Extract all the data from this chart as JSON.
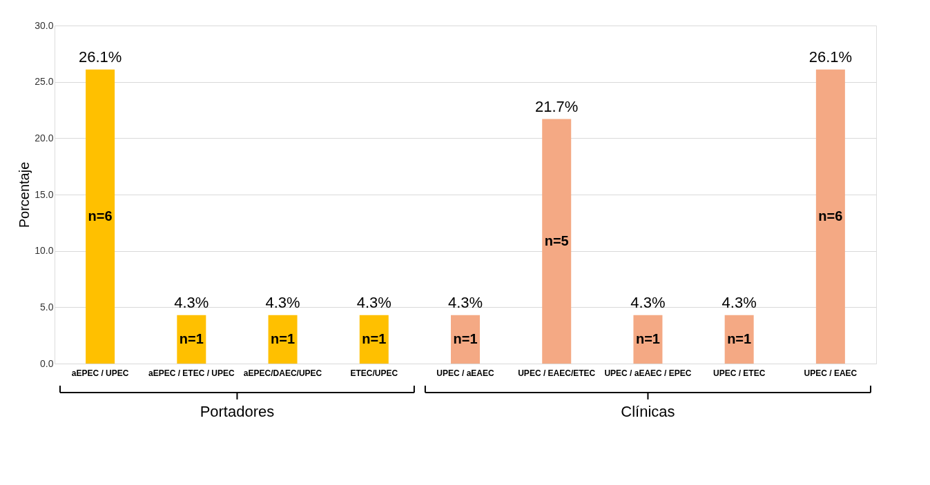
{
  "chart_data": {
    "type": "bar",
    "ylabel": "Porcentaje",
    "categories": [
      "aEPEC / UPEC",
      "aEPEC / ETEC / UPEC",
      "aEPEC/DAEC/UPEC",
      "ETEC/UPEC",
      "UPEC / aEAEC",
      "UPEC / EAEC/ETEC",
      "UPEC / aEAEC / EPEC",
      "UPEC / ETEC",
      "UPEC / EAEC"
    ],
    "values": [
      26.1,
      4.3,
      4.3,
      4.3,
      4.3,
      21.7,
      4.3,
      4.3,
      26.1
    ],
    "colors": [
      "#ffc000",
      "#ffc000",
      "#ffc000",
      "#ffc000",
      "#f4a984",
      "#f4a984",
      "#f4a984",
      "#f4a984",
      "#f4a984"
    ],
    "value_labels": [
      "26.1%",
      "4.3%",
      "4.3%",
      "4.3%",
      "4.3%",
      "21.7%",
      "4.3%",
      "4.3%",
      "26.1%"
    ],
    "ylim": [
      0,
      30
    ],
    "yticks": [
      {
        "value": 0,
        "label": "0.0"
      },
      {
        "value": 5,
        "label": "5.0"
      },
      {
        "value": 10,
        "label": "10.0"
      },
      {
        "value": 15,
        "label": "15.0"
      },
      {
        "value": 20,
        "label": "20.0"
      },
      {
        "value": 25,
        "label": "25.0"
      },
      {
        "value": 30,
        "label": "30.0"
      }
    ],
    "grid": "y",
    "annotations": [
      "n=6",
      "n=1",
      "n=1",
      "n=1",
      "n=1",
      "n=5",
      "n=1",
      "n=1",
      "n=6",
      "Portadores",
      "Clínicas"
    ]
  }
}
